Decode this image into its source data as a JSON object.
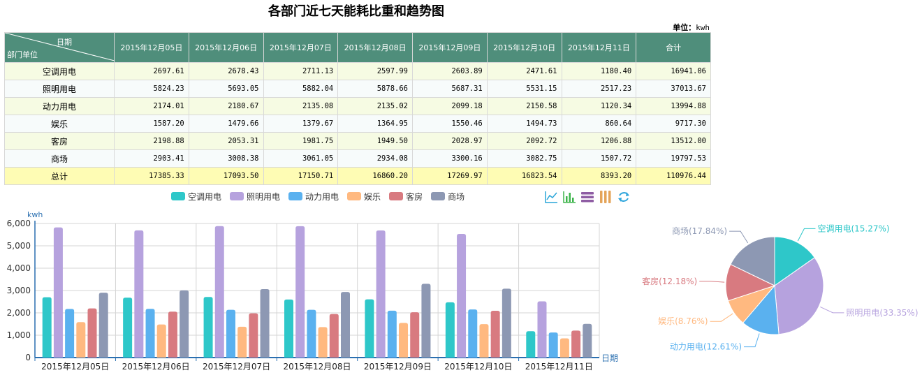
{
  "title": "各部门近七天能耗比重和趋势图",
  "unit_label": "单位：",
  "unit_value": "kwh",
  "table": {
    "corner_date": "日期",
    "corner_dept": "部门单位",
    "headers": [
      "2015年12月05日",
      "2015年12月06日",
      "2015年12月07日",
      "2015年12月08日",
      "2015年12月09日",
      "2015年12月10日",
      "2015年12月11日",
      "合计"
    ],
    "rows": [
      {
        "name": "空调用电",
        "values": [
          "2697.61",
          "2678.43",
          "2711.13",
          "2597.99",
          "2603.89",
          "2471.61",
          "1180.40",
          "16941.06"
        ]
      },
      {
        "name": "照明用电",
        "values": [
          "5824.23",
          "5693.05",
          "5882.04",
          "5878.66",
          "5687.31",
          "5531.15",
          "2517.23",
          "37013.67"
        ]
      },
      {
        "name": "动力用电",
        "values": [
          "2174.01",
          "2180.67",
          "2135.08",
          "2135.02",
          "2099.18",
          "2150.58",
          "1120.34",
          "13994.88"
        ]
      },
      {
        "name": "娱乐",
        "values": [
          "1587.20",
          "1479.66",
          "1379.67",
          "1364.95",
          "1550.46",
          "1494.73",
          "860.64",
          "9717.30"
        ]
      },
      {
        "name": "客房",
        "values": [
          "2198.88",
          "2053.31",
          "1981.75",
          "1949.50",
          "2028.97",
          "2092.72",
          "1206.88",
          "13512.00"
        ]
      },
      {
        "name": "商场",
        "values": [
          "2903.41",
          "3008.38",
          "3061.05",
          "2934.08",
          "3300.16",
          "3082.75",
          "1507.72",
          "19797.53"
        ]
      },
      {
        "name": "总计",
        "values": [
          "17385.33",
          "17093.50",
          "17150.71",
          "16860.20",
          "17269.97",
          "16823.54",
          "8393.20",
          "110976.44"
        ]
      }
    ]
  },
  "toolbox": [
    {
      "icon": "line-chart-icon",
      "color": "#29a5d8"
    },
    {
      "icon": "bar-chart-icon",
      "color": "#3cb44a"
    },
    {
      "icon": "stack-icon",
      "color": "#8e5ca3"
    },
    {
      "icon": "tiled-icon",
      "color": "#e4a45a"
    },
    {
      "icon": "restore-icon",
      "color": "#2ea5dc"
    }
  ],
  "chart_data": [
    {
      "type": "bar",
      "ylabel": "kwh",
      "xlabel": "日期",
      "ylim": [
        0,
        6000
      ],
      "yticks": [
        "0",
        "1,000",
        "2,000",
        "3,000",
        "4,000",
        "5,000",
        "6,000"
      ],
      "grid": true,
      "legend_position": "top",
      "categories": [
        "2015年12月05日",
        "2015年12月06日",
        "2015年12月07日",
        "2015年12月08日",
        "2015年12月09日",
        "2015年12月10日",
        "2015年12月11日"
      ],
      "series": [
        {
          "name": "空调用电",
          "color": "#2ec7c9",
          "values": [
            2697.61,
            2678.43,
            2711.13,
            2597.99,
            2603.89,
            2471.61,
            1180.4
          ]
        },
        {
          "name": "照明用电",
          "color": "#b6a2de",
          "values": [
            5824.23,
            5693.05,
            5882.04,
            5878.66,
            5687.31,
            5531.15,
            2517.23
          ]
        },
        {
          "name": "动力用电",
          "color": "#5ab1ef",
          "values": [
            2174.01,
            2180.67,
            2135.08,
            2135.02,
            2099.18,
            2150.58,
            1120.34
          ]
        },
        {
          "name": "娱乐",
          "color": "#ffb980",
          "values": [
            1587.2,
            1479.66,
            1379.67,
            1364.95,
            1550.46,
            1494.73,
            860.64
          ]
        },
        {
          "name": "客房",
          "color": "#d87a80",
          "values": [
            2198.88,
            2053.31,
            1981.75,
            1949.5,
            2028.97,
            2092.72,
            1206.88
          ]
        },
        {
          "name": "商场",
          "color": "#8d98b3",
          "values": [
            2903.41,
            3008.38,
            3061.05,
            2934.08,
            3300.16,
            3082.75,
            1507.72
          ]
        }
      ]
    },
    {
      "type": "pie",
      "slices": [
        {
          "name": "空调用电",
          "label": "空调用电(15.27%)",
          "value": 15.27,
          "color": "#2ec7c9"
        },
        {
          "name": "照明用电",
          "label": "照明用电(33.35%)",
          "value": 33.35,
          "color": "#b6a2de"
        },
        {
          "name": "动力用电",
          "label": "动力用电(12.61%)",
          "value": 12.61,
          "color": "#5ab1ef"
        },
        {
          "name": "娱乐",
          "label": "娱乐(8.76%)",
          "value": 8.76,
          "color": "#ffb980"
        },
        {
          "name": "客房",
          "label": "客房(12.18%)",
          "value": 12.18,
          "color": "#d87a80"
        },
        {
          "name": "商场",
          "label": "商场(17.84%)",
          "value": 17.84,
          "color": "#8d98b3"
        }
      ]
    }
  ]
}
